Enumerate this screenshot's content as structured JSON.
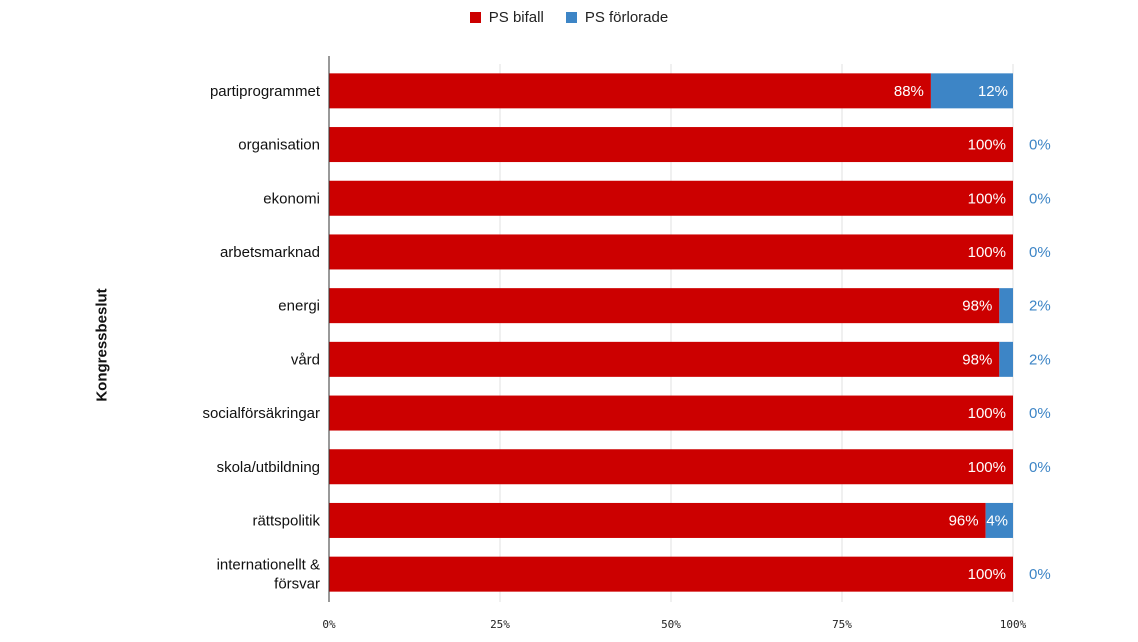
{
  "chart_data": {
    "type": "bar",
    "orientation": "horizontal",
    "stacked": true,
    "categories": [
      "partiprogrammet",
      "organisation",
      "ekonomi",
      "arbetsmarknad",
      "energi",
      "vård",
      "socialförsäkringar",
      "skola/utbildning",
      "rättspolitik",
      "internationellt & försvar"
    ],
    "category_lines": [
      [
        "partiprogrammet"
      ],
      [
        "organisation"
      ],
      [
        "ekonomi"
      ],
      [
        "arbetsmarknad"
      ],
      [
        "energi"
      ],
      [
        "vård"
      ],
      [
        "socialförsäkringar"
      ],
      [
        "skola/utbildning"
      ],
      [
        "rättspolitik"
      ],
      [
        "internationellt &",
        "försvar"
      ]
    ],
    "series": [
      {
        "name": "PS bifall",
        "color": "#cc0000",
        "values": [
          88,
          100,
          100,
          100,
          98,
          98,
          100,
          100,
          96,
          100
        ],
        "labels": [
          "88%",
          "100%",
          "100%",
          "100%",
          "98%",
          "98%",
          "100%",
          "100%",
          "96%",
          "100%"
        ]
      },
      {
        "name": "PS förlorade",
        "color": "#3d85c6",
        "values": [
          12,
          0,
          0,
          0,
          2,
          2,
          0,
          0,
          4,
          0
        ],
        "labels": [
          "12%",
          "0%",
          "0%",
          "0%",
          "2%",
          "2%",
          "0%",
          "0%",
          "4%",
          "0%"
        ]
      }
    ],
    "xticks": [
      "0%",
      "25%",
      "50%",
      "75%",
      "100%"
    ],
    "xlim": [
      0,
      100
    ],
    "xlabel": "",
    "ylabel": "Kongressbeslut",
    "legend_position": "top",
    "grid": true
  }
}
